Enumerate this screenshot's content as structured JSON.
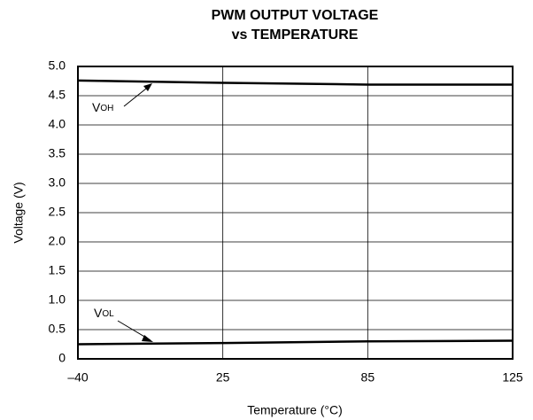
{
  "chart_data": {
    "type": "line",
    "title": "PWM OUTPUT VOLTAGE",
    "subtitle": "vs TEMPERATURE",
    "x_label": "Temperature (°C)",
    "y_label": "Voltage (V)",
    "categories": [
      "–40",
      "25",
      "85",
      "125"
    ],
    "series": [
      {
        "name": "VOH",
        "color": "#000000",
        "values": [
          4.76,
          4.72,
          4.69,
          4.69
        ]
      },
      {
        "name": "VOL",
        "color": "#000000",
        "values": [
          0.25,
          0.27,
          0.3,
          0.31
        ]
      }
    ],
    "ylim": [
      0,
      5
    ],
    "yticks": [
      0,
      0.5,
      {
        "value": 1,
        "label": "1.0"
      },
      1.5,
      {
        "value": 2,
        "label": "2.0"
      },
      2.5,
      {
        "value": 3,
        "label": "3.0"
      },
      3.5,
      {
        "value": 4,
        "label": "4.0"
      },
      4.5,
      {
        "value": 5,
        "label": "5.0"
      }
    ],
    "grid": true
  }
}
